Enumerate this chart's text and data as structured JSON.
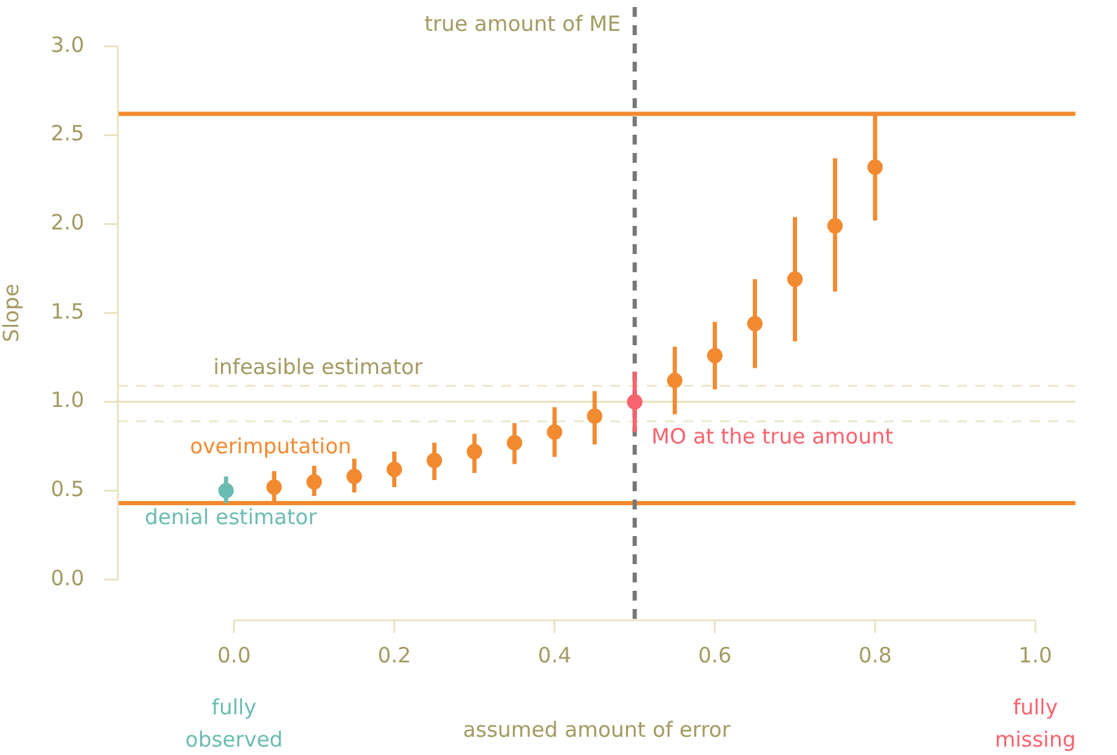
{
  "chart_data": {
    "type": "scatter",
    "xlabel": "assumed amount of error",
    "ylabel": "Slope",
    "xlim": [
      -0.145,
      1.05
    ],
    "ylim": [
      0,
      3
    ],
    "xticks": [
      {
        "value": 0,
        "label": "0.0"
      },
      0.2,
      0.4,
      0.6,
      0.8,
      {
        "value": 1,
        "label": "1.0"
      }
    ],
    "yticks": [
      {
        "value": 0,
        "label": "0.0"
      },
      0.5,
      {
        "value": 1,
        "label": "1.0"
      },
      1.5,
      {
        "value": 2,
        "label": "2.0"
      },
      2.5,
      {
        "value": 3,
        "label": "3.0"
      }
    ],
    "grid": false,
    "legend": false,
    "marker": "circle",
    "series": [
      {
        "name": "denial estimator",
        "color": "#6bbcb0",
        "x": [
          -0.01
        ],
        "values": [
          0.5
        ],
        "errors": [
          [
            0.43,
            0.58
          ]
        ]
      },
      {
        "name": "overimputation",
        "color": "#f28a30",
        "x": [
          0.05,
          0.1,
          0.15,
          0.2,
          0.25,
          0.3,
          0.35,
          0.4,
          0.45,
          0.55,
          0.6,
          0.65,
          0.7,
          0.75,
          0.8
        ],
        "values": [
          0.52,
          0.55,
          0.58,
          0.62,
          0.67,
          0.72,
          0.77,
          0.83,
          0.92,
          1.12,
          1.26,
          1.44,
          1.69,
          1.99,
          2.32
        ],
        "errors": [
          [
            0.44,
            0.61
          ],
          [
            0.47,
            0.64
          ],
          [
            0.49,
            0.68
          ],
          [
            0.52,
            0.72
          ],
          [
            0.56,
            0.77
          ],
          [
            0.6,
            0.82
          ],
          [
            0.65,
            0.88
          ],
          [
            0.69,
            0.97
          ],
          [
            0.76,
            1.06
          ],
          [
            0.93,
            1.31
          ],
          [
            1.07,
            1.45
          ],
          [
            1.19,
            1.69
          ],
          [
            1.34,
            2.04
          ],
          [
            1.62,
            2.37
          ],
          [
            2.02,
            2.62
          ]
        ]
      },
      {
        "name": "MO at the true amount",
        "color": "#f7636e",
        "x": [
          0.5
        ],
        "values": [
          1.0
        ],
        "errors": [
          [
            0.83,
            1.17
          ]
        ]
      }
    ],
    "ref_lines": [
      {
        "axis": "y",
        "value": 2.62,
        "color": "#f28a30",
        "line_style": "solid"
      },
      {
        "axis": "y",
        "value": 0.43,
        "color": "#f28a30",
        "line_style": "solid"
      },
      {
        "axis": "y",
        "value": 1.09,
        "color": "#ebe6cc",
        "line_style": "dashed",
        "label": "infeasible estimator"
      },
      {
        "axis": "y",
        "value": 0.89,
        "color": "#ebe6cc",
        "line_style": "dashed"
      },
      {
        "axis": "y",
        "value": 1.0,
        "color": "#e8e2c0",
        "line_style": "solid"
      },
      {
        "axis": "x",
        "value": 0.5,
        "color": "#777777",
        "line_style": "dashed",
        "label": "true amount of ME"
      }
    ],
    "annotations": [
      "fully observed",
      "fully missing"
    ]
  }
}
